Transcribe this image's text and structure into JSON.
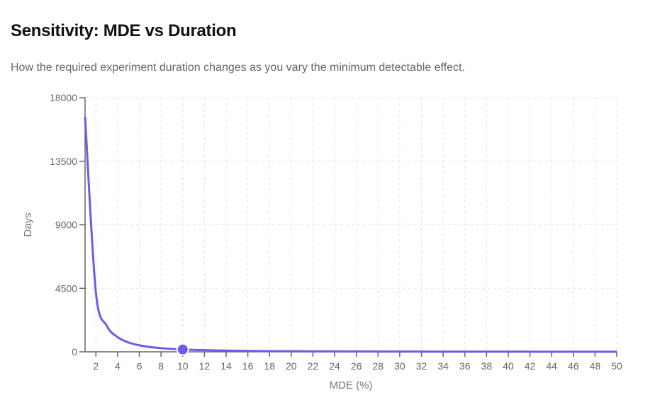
{
  "header": {
    "title": "Sensitivity: MDE vs Duration",
    "subtitle": "How the required experiment duration changes as you vary the minimum detectable effect."
  },
  "chart_data": {
    "type": "line",
    "xlabel": "MDE (%)",
    "ylabel": "Days",
    "xlim": [
      1,
      50
    ],
    "ylim": [
      0,
      18000
    ],
    "x_ticks": [
      2,
      4,
      6,
      8,
      10,
      12,
      14,
      16,
      18,
      20,
      22,
      24,
      26,
      28,
      30,
      32,
      34,
      36,
      38,
      40,
      42,
      44,
      46,
      48,
      50
    ],
    "y_ticks": [
      0,
      4500,
      9000,
      13500,
      18000
    ],
    "grid": true,
    "color": "#6c5ce7",
    "series": [
      {
        "name": "Days",
        "x": [
          1,
          2,
          3,
          4,
          5,
          6,
          7,
          8,
          9,
          10,
          11,
          12,
          13,
          14,
          15,
          16,
          17,
          18,
          19,
          20,
          21,
          22,
          23,
          24,
          25,
          26,
          27,
          28,
          29,
          30,
          31,
          32,
          33,
          34,
          35,
          36,
          37,
          38,
          39,
          40,
          41,
          42,
          43,
          44,
          45,
          46,
          47,
          48,
          49,
          50
        ],
        "values": [
          16650,
          4163,
          1850,
          1041,
          666,
          463,
          340,
          260,
          206,
          167,
          138,
          116,
          99,
          85,
          74,
          65,
          58,
          51,
          46,
          42,
          38,
          34,
          31,
          29,
          27,
          25,
          23,
          21,
          20,
          19,
          17,
          16,
          15,
          14,
          14,
          13,
          12,
          12,
          11,
          10,
          10,
          9,
          9,
          9,
          8,
          8,
          8,
          7,
          7,
          7
        ]
      }
    ],
    "highlight": {
      "x": 10,
      "y": 167
    }
  }
}
